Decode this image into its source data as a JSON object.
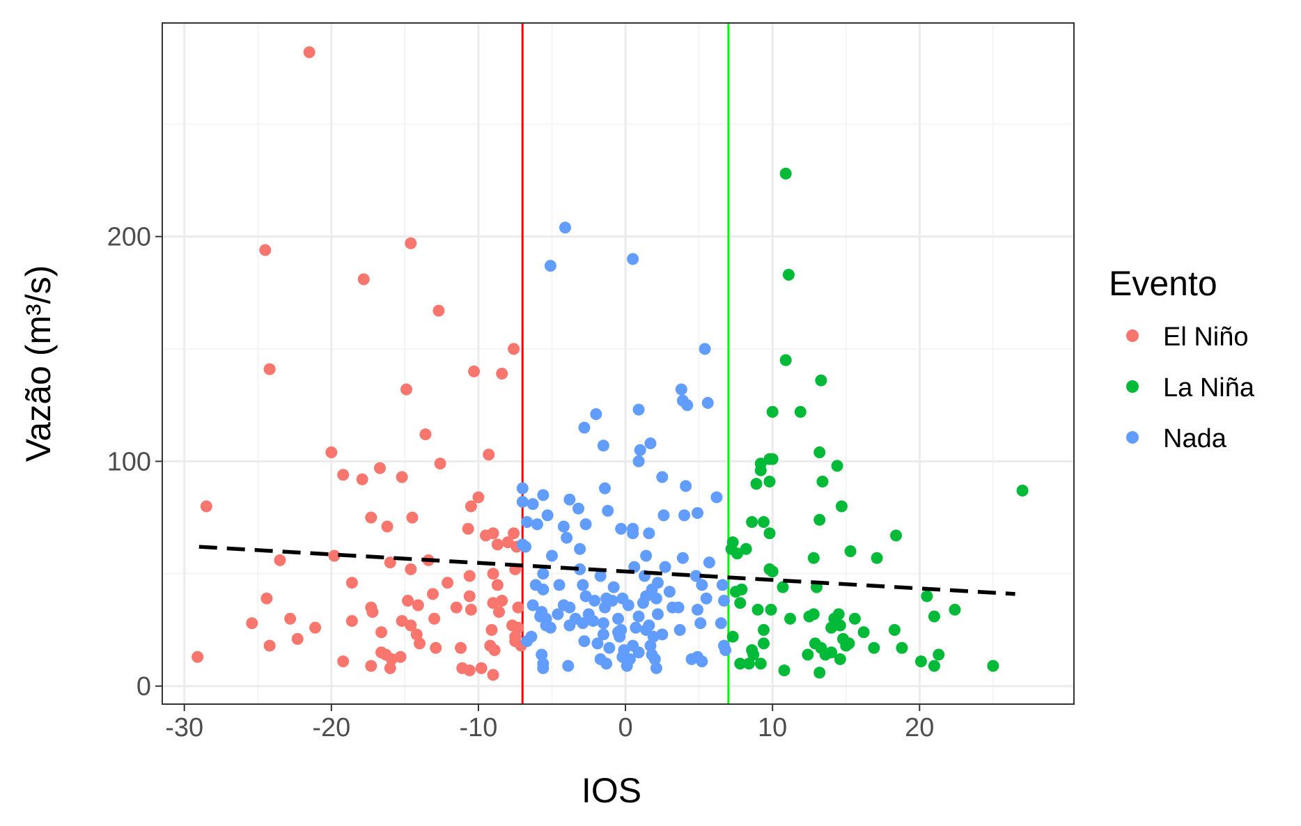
{
  "chart_data": {
    "type": "scatter",
    "xlabel": "IOS",
    "ylabel": "Vazão (m³/s)",
    "xlim": [
      -31.5,
      30.5
    ],
    "ylim": [
      -8,
      295
    ],
    "x_ticks": [
      -30,
      -20,
      -10,
      0,
      10,
      20
    ],
    "x_tick_labels": [
      "-30",
      "-20",
      "-10",
      "0",
      "10",
      "20"
    ],
    "x_minor_ticks": [
      -25,
      -15,
      -5,
      5,
      15,
      25
    ],
    "y_ticks": [
      0,
      100,
      200
    ],
    "y_tick_labels": [
      "0",
      "100",
      "200"
    ],
    "y_minor_ticks": [
      50,
      150,
      250
    ],
    "grid": true,
    "legend": {
      "title": "Evento",
      "placement": "right"
    },
    "reference_lines": [
      {
        "axis": "x",
        "value": -7,
        "color": "#ff0000"
      },
      {
        "axis": "x",
        "value": 7,
        "color": "#00ff00"
      }
    ],
    "trend_line": {
      "x": [
        -29,
        26.5
      ],
      "y": [
        62,
        41
      ],
      "color": "#000000",
      "style": "dashed"
    },
    "series": [
      {
        "name": "El Niño",
        "color": "#F8766D",
        "points": [
          [
            -21.5,
            282
          ],
          [
            -24.5,
            194
          ],
          [
            -14.6,
            197
          ],
          [
            -17.8,
            181
          ],
          [
            -12.7,
            167
          ],
          [
            -24.2,
            141
          ],
          [
            -7.6,
            150
          ],
          [
            -10.3,
            140
          ],
          [
            -8.4,
            139
          ],
          [
            -14.9,
            132
          ],
          [
            -13.6,
            112
          ],
          [
            -20,
            104
          ],
          [
            -9.3,
            103
          ],
          [
            -12.6,
            99
          ],
          [
            -16.7,
            97
          ],
          [
            -19.2,
            94
          ],
          [
            -17.9,
            92
          ],
          [
            -15.2,
            93
          ],
          [
            -10,
            84
          ],
          [
            -10.5,
            80
          ],
          [
            -28.5,
            80
          ],
          [
            -17.3,
            75
          ],
          [
            -14.5,
            75
          ],
          [
            -16.2,
            71
          ],
          [
            -10.7,
            70
          ],
          [
            -9,
            68
          ],
          [
            -9.5,
            67
          ],
          [
            -7.6,
            68
          ],
          [
            -8.7,
            63
          ],
          [
            -7.4,
            62
          ],
          [
            -8,
            64
          ],
          [
            -19.8,
            58
          ],
          [
            -23.5,
            56
          ],
          [
            -13.4,
            56
          ],
          [
            -16,
            55
          ],
          [
            -14.6,
            52
          ],
          [
            -7.5,
            52
          ],
          [
            -9,
            50
          ],
          [
            -10.6,
            49
          ],
          [
            -18.6,
            46
          ],
          [
            -12.1,
            46
          ],
          [
            -8.7,
            45
          ],
          [
            -13.1,
            41
          ],
          [
            -10.6,
            40
          ],
          [
            -24.4,
            39
          ],
          [
            -14.8,
            38
          ],
          [
            -8.4,
            38
          ],
          [
            -9,
            37
          ],
          [
            -14.1,
            36
          ],
          [
            -17.3,
            35
          ],
          [
            -11.5,
            35
          ],
          [
            -10.5,
            34
          ],
          [
            -7.3,
            35
          ],
          [
            -17.2,
            33
          ],
          [
            -8.6,
            33
          ],
          [
            -22.8,
            30
          ],
          [
            -18.6,
            29
          ],
          [
            -15.2,
            29
          ],
          [
            -13,
            30
          ],
          [
            -25.4,
            28
          ],
          [
            -14.6,
            27
          ],
          [
            -7.7,
            27
          ],
          [
            -7.3,
            26
          ],
          [
            -21.1,
            26
          ],
          [
            -9.1,
            25
          ],
          [
            -16.6,
            24
          ],
          [
            -14.2,
            23
          ],
          [
            -7.5,
            22
          ],
          [
            -22.3,
            21
          ],
          [
            -14,
            19
          ],
          [
            -7.5,
            20
          ],
          [
            -24.2,
            18
          ],
          [
            -9.2,
            18
          ],
          [
            -8.9,
            16
          ],
          [
            -11.2,
            17
          ],
          [
            -12.9,
            17
          ],
          [
            -16.6,
            15
          ],
          [
            -7.1,
            18
          ],
          [
            -16.3,
            14
          ],
          [
            -15.3,
            13
          ],
          [
            -15.9,
            12
          ],
          [
            -29.1,
            13
          ],
          [
            -19.2,
            11
          ],
          [
            -17.3,
            9
          ],
          [
            -16,
            8
          ],
          [
            -11.1,
            8
          ],
          [
            -10.6,
            7
          ],
          [
            -9.8,
            8
          ],
          [
            -9,
            5
          ]
        ]
      },
      {
        "name": "La Niña",
        "color": "#00BA38",
        "points": [
          [
            10.9,
            228
          ],
          [
            11.1,
            183
          ],
          [
            10.9,
            145
          ],
          [
            13.3,
            136
          ],
          [
            10,
            122
          ],
          [
            11.9,
            122
          ],
          [
            13.2,
            104
          ],
          [
            9.8,
            101
          ],
          [
            10,
            101
          ],
          [
            9.2,
            99
          ],
          [
            14.4,
            98
          ],
          [
            9.2,
            96
          ],
          [
            9.8,
            91
          ],
          [
            8.9,
            90
          ],
          [
            13.4,
            91
          ],
          [
            27,
            87
          ],
          [
            14.7,
            80
          ],
          [
            8.6,
            73
          ],
          [
            9.4,
            73
          ],
          [
            13.2,
            74
          ],
          [
            9.8,
            68
          ],
          [
            18.4,
            67
          ],
          [
            7.3,
            64
          ],
          [
            7.2,
            61
          ],
          [
            8.2,
            61
          ],
          [
            7.6,
            59
          ],
          [
            15.3,
            60
          ],
          [
            12.8,
            57
          ],
          [
            17.1,
            57
          ],
          [
            9.8,
            52
          ],
          [
            10,
            51
          ],
          [
            10.7,
            44
          ],
          [
            13,
            44
          ],
          [
            7.9,
            43
          ],
          [
            7.5,
            42
          ],
          [
            20.5,
            40
          ],
          [
            7.8,
            37
          ],
          [
            9,
            34
          ],
          [
            9.9,
            34
          ],
          [
            14.5,
            32
          ],
          [
            21,
            31
          ],
          [
            22.4,
            34
          ],
          [
            11.2,
            30
          ],
          [
            12.5,
            31
          ],
          [
            12.8,
            32
          ],
          [
            14.2,
            30
          ],
          [
            15.6,
            30
          ],
          [
            14,
            26
          ],
          [
            9.4,
            25
          ],
          [
            14.6,
            27
          ],
          [
            16.2,
            24
          ],
          [
            18.3,
            25
          ],
          [
            7.3,
            22
          ],
          [
            14.8,
            21
          ],
          [
            12.9,
            19
          ],
          [
            15,
            18
          ],
          [
            13.3,
            17
          ],
          [
            15.2,
            19
          ],
          [
            9.4,
            19
          ],
          [
            8.6,
            16
          ],
          [
            18.8,
            17
          ],
          [
            16.9,
            17
          ],
          [
            12.4,
            14
          ],
          [
            8.7,
            14
          ],
          [
            13.6,
            14
          ],
          [
            14,
            15
          ],
          [
            21.3,
            14
          ],
          [
            14.6,
            12
          ],
          [
            7.8,
            10
          ],
          [
            8.4,
            10
          ],
          [
            9.2,
            10
          ],
          [
            20.1,
            11
          ],
          [
            21,
            9
          ],
          [
            10.8,
            7
          ],
          [
            13.2,
            6
          ],
          [
            25,
            9
          ]
        ]
      },
      {
        "name": "Nada",
        "color": "#619CFF",
        "points": [
          [
            -4.1,
            204
          ],
          [
            0.5,
            190
          ],
          [
            -5.1,
            187
          ],
          [
            5.4,
            150
          ],
          [
            3.8,
            132
          ],
          [
            3.9,
            127
          ],
          [
            4.2,
            125
          ],
          [
            5.6,
            126
          ],
          [
            -2,
            121
          ],
          [
            0.9,
            123
          ],
          [
            -2.8,
            115
          ],
          [
            1.7,
            108
          ],
          [
            -1.5,
            107
          ],
          [
            1,
            105
          ],
          [
            0.9,
            100
          ],
          [
            2.5,
            93
          ],
          [
            -7,
            88
          ],
          [
            -1.4,
            88
          ],
          [
            4.1,
            89
          ],
          [
            -5.6,
            85
          ],
          [
            -3.8,
            83
          ],
          [
            6.2,
            84
          ],
          [
            -7,
            82
          ],
          [
            -6.3,
            81
          ],
          [
            -3.2,
            79
          ],
          [
            -1.2,
            78
          ],
          [
            4.9,
            77
          ],
          [
            2.6,
            76
          ],
          [
            4,
            76
          ],
          [
            -5.3,
            76
          ],
          [
            -6.7,
            73
          ],
          [
            -6,
            72
          ],
          [
            -2.7,
            72
          ],
          [
            -4.2,
            71
          ],
          [
            -0.3,
            70
          ],
          [
            0.5,
            70
          ],
          [
            0.5,
            68
          ],
          [
            1.6,
            68
          ],
          [
            -4,
            66
          ],
          [
            -7,
            63
          ],
          [
            -6.8,
            62
          ],
          [
            -3.1,
            61
          ],
          [
            -5,
            58
          ],
          [
            1.4,
            58
          ],
          [
            3.9,
            57
          ],
          [
            5.7,
            55
          ],
          [
            0.6,
            53
          ],
          [
            2.7,
            53
          ],
          [
            -3.1,
            52
          ],
          [
            -5.6,
            50
          ],
          [
            1.3,
            49
          ],
          [
            4.8,
            49
          ],
          [
            -1.7,
            49
          ],
          [
            2.2,
            46
          ],
          [
            -6.1,
            45
          ],
          [
            -4.5,
            45
          ],
          [
            -2.9,
            45
          ],
          [
            -0.8,
            44
          ],
          [
            -5.6,
            43
          ],
          [
            1.8,
            43
          ],
          [
            3,
            42
          ],
          [
            5.2,
            45
          ],
          [
            -2.7,
            40
          ],
          [
            -1.3,
            39
          ],
          [
            -0.2,
            39
          ],
          [
            1.4,
            40
          ],
          [
            2.1,
            39
          ],
          [
            0.2,
            36
          ],
          [
            -0.9,
            38
          ],
          [
            1.2,
            37
          ],
          [
            -2.1,
            38
          ],
          [
            -4.2,
            36
          ],
          [
            -3.8,
            35
          ],
          [
            -6.3,
            36
          ],
          [
            -5.7,
            33
          ],
          [
            -1.4,
            35
          ],
          [
            3.2,
            35
          ],
          [
            3.6,
            35
          ],
          [
            4.9,
            34
          ],
          [
            5.5,
            39
          ],
          [
            -2.5,
            32
          ],
          [
            -0.5,
            30
          ],
          [
            0.9,
            31
          ],
          [
            2.2,
            32
          ],
          [
            -4.6,
            32
          ],
          [
            -3.4,
            30
          ],
          [
            -5.8,
            31
          ],
          [
            -5.4,
            30
          ],
          [
            -2.2,
            29
          ],
          [
            -1.5,
            28
          ],
          [
            -2.9,
            28
          ],
          [
            0.7,
            26
          ],
          [
            1.6,
            27
          ],
          [
            -0.3,
            25
          ],
          [
            -3.8,
            27
          ],
          [
            -5.4,
            27
          ],
          [
            -5.1,
            26
          ],
          [
            -0.5,
            24
          ],
          [
            1.4,
            25
          ],
          [
            3.7,
            25
          ],
          [
            5.1,
            28
          ],
          [
            -1.5,
            23
          ],
          [
            -0.4,
            22
          ],
          [
            1.9,
            22
          ],
          [
            2.5,
            23
          ],
          [
            -6.4,
            22
          ],
          [
            -6.7,
            20
          ],
          [
            -2.8,
            20
          ],
          [
            -1.9,
            19
          ],
          [
            0.5,
            18
          ],
          [
            1.7,
            18
          ],
          [
            -1.1,
            17
          ],
          [
            -0.1,
            16
          ],
          [
            0.9,
            15
          ],
          [
            1.8,
            14
          ],
          [
            -5.7,
            14
          ],
          [
            -0.2,
            13
          ],
          [
            0.3,
            12
          ],
          [
            2,
            12
          ],
          [
            -1.7,
            12
          ],
          [
            4.5,
            12
          ],
          [
            5.2,
            11
          ],
          [
            4.9,
            13
          ],
          [
            -5.6,
            10
          ],
          [
            -1.3,
            10
          ],
          [
            0.1,
            9
          ],
          [
            -5.6,
            8
          ],
          [
            -3.9,
            9
          ],
          [
            2.1,
            8
          ],
          [
            6.7,
            18
          ],
          [
            6.8,
            16
          ],
          [
            6.5,
            28
          ],
          [
            6.7,
            38
          ],
          [
            6.6,
            45
          ]
        ]
      }
    ]
  }
}
